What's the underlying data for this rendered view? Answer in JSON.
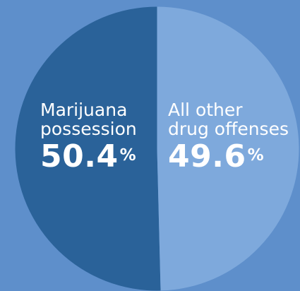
{
  "chart_data": {
    "type": "pie",
    "slices": [
      {
        "label_line1": "Marijuana",
        "label_line2": "possession",
        "value": 50.4,
        "value_text": "50.4",
        "color": "#2a6299"
      },
      {
        "label_line1": "All other",
        "label_line2": "drug offenses",
        "value": 49.6,
        "value_text": "49.6",
        "color": "#7ea9dc"
      }
    ],
    "percent_symbol": "%",
    "background": "#5e8fcb"
  }
}
